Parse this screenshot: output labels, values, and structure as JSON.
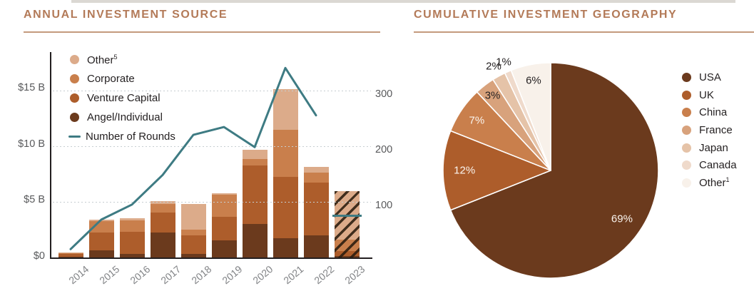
{
  "style": {
    "title_color": "#b37a58",
    "underline_color": "#c49a7d",
    "axis_text_color": "#58595b",
    "xtick_color": "#808285",
    "grid_color": "#c7ced1",
    "axis_line_color": "#231f20",
    "legend_text_color": "#231f20",
    "pie_label_light": "#faf4ee",
    "pie_label_dark": "#231f20",
    "cropped_edge_color": "#dbd8d3",
    "background": "#ffffff"
  },
  "chart_data": [
    {
      "type": "bar",
      "title": "ANNUAL INVESTMENT SOURCE",
      "categories": [
        "2014",
        "2015",
        "2016",
        "2017",
        "2018",
        "2019",
        "2020",
        "2021",
        "2022",
        "2023"
      ],
      "series": [
        {
          "name": "Angel/Individual",
          "color": "#6b3a1d",
          "values": [
            0.05,
            0.65,
            0.3,
            2.2,
            0.3,
            1.5,
            3.0,
            1.7,
            2.0,
            0.15
          ]
        },
        {
          "name": "Venture Capital",
          "color": "#ad5d2b",
          "values": [
            0.25,
            1.55,
            2.0,
            1.8,
            1.7,
            2.1,
            5.2,
            5.5,
            4.7,
            0.45
          ]
        },
        {
          "name": "Corporate",
          "color": "#c97f4c",
          "values": [
            0.1,
            1.05,
            1.0,
            0.8,
            0.5,
            2.0,
            0.6,
            4.2,
            0.9,
            1.0
          ]
        },
        {
          "name": "Other",
          "sup": "5",
          "color": "#dcab8a",
          "values": [
            0.05,
            0.1,
            0.2,
            0.2,
            2.3,
            0.1,
            0.8,
            3.6,
            0.5,
            4.3
          ]
        }
      ],
      "totals_usd_b": [
        0.45,
        3.35,
        3.5,
        5.0,
        4.8,
        5.7,
        9.6,
        15.0,
        8.1,
        5.9
      ],
      "line": {
        "name": "Number of Rounds",
        "color": "#3e7b83",
        "values": [
          15,
          68,
          95,
          148,
          220,
          234,
          198,
          340,
          255
        ],
        "partial_marker": {
          "category": "2023",
          "value": 75
        }
      },
      "y_left": {
        "ticks": [
          "$0",
          "$5 B",
          "$10 B",
          "$15 B"
        ],
        "values": [
          0,
          5,
          10,
          15
        ],
        "axis_max": 18.2
      },
      "y_right": {
        "ticks": [
          "100",
          "200",
          "300"
        ],
        "values": [
          100,
          200,
          300
        ],
        "axis_max": 366
      },
      "hatched_category": "2023",
      "grid": "dotted horizontal",
      "legend_position": "top-left inside plot"
    },
    {
      "type": "pie",
      "title": "CUMULATIVE INVESTMENT GEOGRAPHY",
      "slices": [
        {
          "label": "USA",
          "pct": 69,
          "color": "#6b3a1d"
        },
        {
          "label": "UK",
          "pct": 12,
          "color": "#ad5d2b"
        },
        {
          "label": "China",
          "pct": 7,
          "color": "#c97f4c"
        },
        {
          "label": "France",
          "pct": 3,
          "color": "#d8a27c"
        },
        {
          "label": "Japan",
          "pct": 2,
          "color": "#e5c3a8"
        },
        {
          "label": "Canada",
          "pct": 1,
          "color": "#efdacb"
        },
        {
          "label": "Other",
          "sup": "1",
          "pct": 6,
          "color": "#f8f1ea"
        }
      ],
      "start": "12 o'clock, clockwise",
      "legend_position": "right"
    }
  ]
}
